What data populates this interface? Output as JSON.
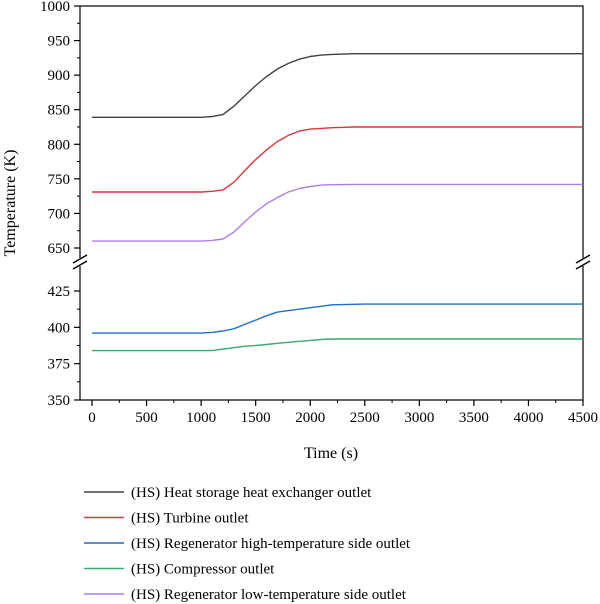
{
  "chart_data": {
    "type": "line",
    "title": "",
    "xlabel": "Time (s)",
    "ylabel": "Temperature (K)",
    "xlim": [
      0,
      4500
    ],
    "x_ticks": [
      0,
      500,
      1000,
      1500,
      2000,
      2500,
      3000,
      3500,
      4000,
      4500
    ],
    "y_axis_broken": true,
    "ylim_upper_segment": [
      650,
      1000
    ],
    "ylim_lower_segment": [
      350,
      425
    ],
    "y_ticks_upper": [
      650,
      700,
      750,
      800,
      850,
      900,
      950,
      1000
    ],
    "y_ticks_lower": [
      350,
      375,
      400,
      425
    ],
    "grid": false,
    "legend_position": "below",
    "series": [
      {
        "name": "(HS) Heat storage heat exchanger outlet",
        "color": "#404040",
        "points": [
          [
            0,
            839
          ],
          [
            1000,
            839
          ],
          [
            1100,
            840
          ],
          [
            1200,
            843
          ],
          [
            1300,
            855
          ],
          [
            1400,
            870
          ],
          [
            1500,
            885
          ],
          [
            1600,
            898
          ],
          [
            1700,
            909
          ],
          [
            1800,
            917
          ],
          [
            1900,
            923
          ],
          [
            2000,
            927
          ],
          [
            2100,
            929
          ],
          [
            2200,
            930
          ],
          [
            2400,
            931
          ],
          [
            2600,
            931
          ],
          [
            3000,
            931
          ],
          [
            3500,
            931
          ],
          [
            4000,
            931
          ],
          [
            4500,
            931
          ]
        ]
      },
      {
        "name": "(HS) Turbine outlet",
        "color": "#e0353b",
        "points": [
          [
            0,
            731
          ],
          [
            1000,
            731
          ],
          [
            1100,
            732
          ],
          [
            1200,
            734
          ],
          [
            1300,
            745
          ],
          [
            1400,
            762
          ],
          [
            1500,
            778
          ],
          [
            1600,
            792
          ],
          [
            1700,
            804
          ],
          [
            1800,
            813
          ],
          [
            1900,
            819
          ],
          [
            2000,
            822
          ],
          [
            2100,
            823
          ],
          [
            2200,
            824
          ],
          [
            2400,
            825
          ],
          [
            2600,
            825
          ],
          [
            3000,
            825
          ],
          [
            3500,
            825
          ],
          [
            4000,
            825
          ],
          [
            4500,
            825
          ]
        ]
      },
      {
        "name": "(HS) Regenerator high-temperature side outlet",
        "color": "#1f6fd1",
        "points": [
          [
            0,
            396
          ],
          [
            1000,
            396
          ],
          [
            1100,
            396.5
          ],
          [
            1200,
            397.5
          ],
          [
            1300,
            399
          ],
          [
            1400,
            402
          ],
          [
            1500,
            405
          ],
          [
            1600,
            408
          ],
          [
            1700,
            410.5
          ],
          [
            1800,
            411.5
          ],
          [
            1900,
            412.5
          ],
          [
            2000,
            413.5
          ],
          [
            2100,
            414.5
          ],
          [
            2200,
            415.5
          ],
          [
            2500,
            416
          ],
          [
            3000,
            416
          ],
          [
            3500,
            416
          ],
          [
            4000,
            416
          ],
          [
            4500,
            416
          ]
        ]
      },
      {
        "name": "(HS) Compressor outlet",
        "color": "#3aaa6a",
        "points": [
          [
            0,
            384
          ],
          [
            1000,
            384
          ],
          [
            1100,
            384
          ],
          [
            1200,
            385
          ],
          [
            1300,
            386
          ],
          [
            1400,
            387
          ],
          [
            1500,
            387.5
          ],
          [
            1600,
            388.2
          ],
          [
            1700,
            389
          ],
          [
            1800,
            389.7
          ],
          [
            1900,
            390.4
          ],
          [
            2000,
            391
          ],
          [
            2100,
            391.6
          ],
          [
            2200,
            392
          ],
          [
            2500,
            392
          ],
          [
            3000,
            392
          ],
          [
            3500,
            392
          ],
          [
            4000,
            392
          ],
          [
            4500,
            392
          ]
        ]
      },
      {
        "name": "(HS) Regenerator low-temperature side outlet",
        "color": "#b07ee8",
        "points": [
          [
            0,
            660
          ],
          [
            1000,
            660
          ],
          [
            1100,
            661
          ],
          [
            1200,
            663
          ],
          [
            1300,
            673
          ],
          [
            1400,
            688
          ],
          [
            1500,
            702
          ],
          [
            1600,
            714
          ],
          [
            1700,
            723
          ],
          [
            1800,
            731
          ],
          [
            1900,
            736
          ],
          [
            2000,
            739
          ],
          [
            2100,
            741
          ],
          [
            2200,
            741.5
          ],
          [
            2400,
            742
          ],
          [
            2600,
            742
          ],
          [
            3000,
            742
          ],
          [
            3500,
            742
          ],
          [
            4000,
            742
          ],
          [
            4500,
            742
          ]
        ]
      }
    ]
  }
}
